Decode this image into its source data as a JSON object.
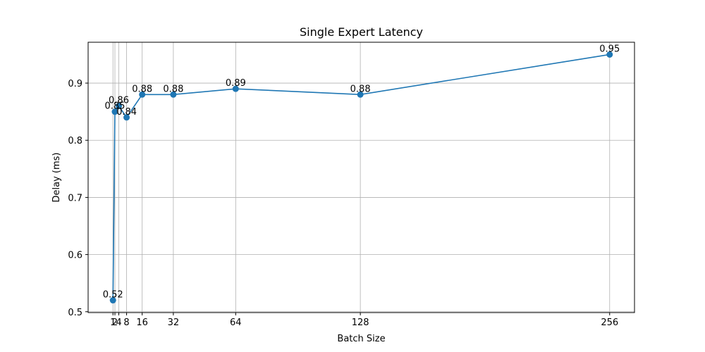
{
  "chart_data": {
    "type": "line",
    "title": "Single Expert Latency",
    "xlabel": "Batch Size",
    "ylabel": "Delay (ms)",
    "x": [
      1,
      2,
      4,
      8,
      16,
      32,
      64,
      128,
      256
    ],
    "series": [
      {
        "values": [
          0.52,
          0.85,
          0.86,
          0.84,
          0.88,
          0.88,
          0.89,
          0.88,
          0.95
        ],
        "labels": [
          "0.52",
          "0.85",
          "0.86",
          "0.84",
          "0.88",
          "0.88",
          "0.89",
          "0.88",
          "0.95"
        ],
        "color": "#1f77b4"
      }
    ],
    "xticks": [
      1,
      2,
      4,
      8,
      16,
      32,
      64,
      128,
      256
    ],
    "xtick_labels": [
      "1",
      "2",
      "4",
      "8",
      "16",
      "32",
      "64",
      "128",
      "256"
    ],
    "yticks": [
      0.5,
      0.6,
      0.7,
      0.8,
      0.9
    ],
    "ytick_labels": [
      "0.5",
      "0.6",
      "0.7",
      "0.8",
      "0.9"
    ],
    "xlim": [
      -11.75,
      268.75
    ],
    "ylim": [
      0.4985,
      0.9715
    ],
    "grid": true,
    "legend": "none"
  }
}
